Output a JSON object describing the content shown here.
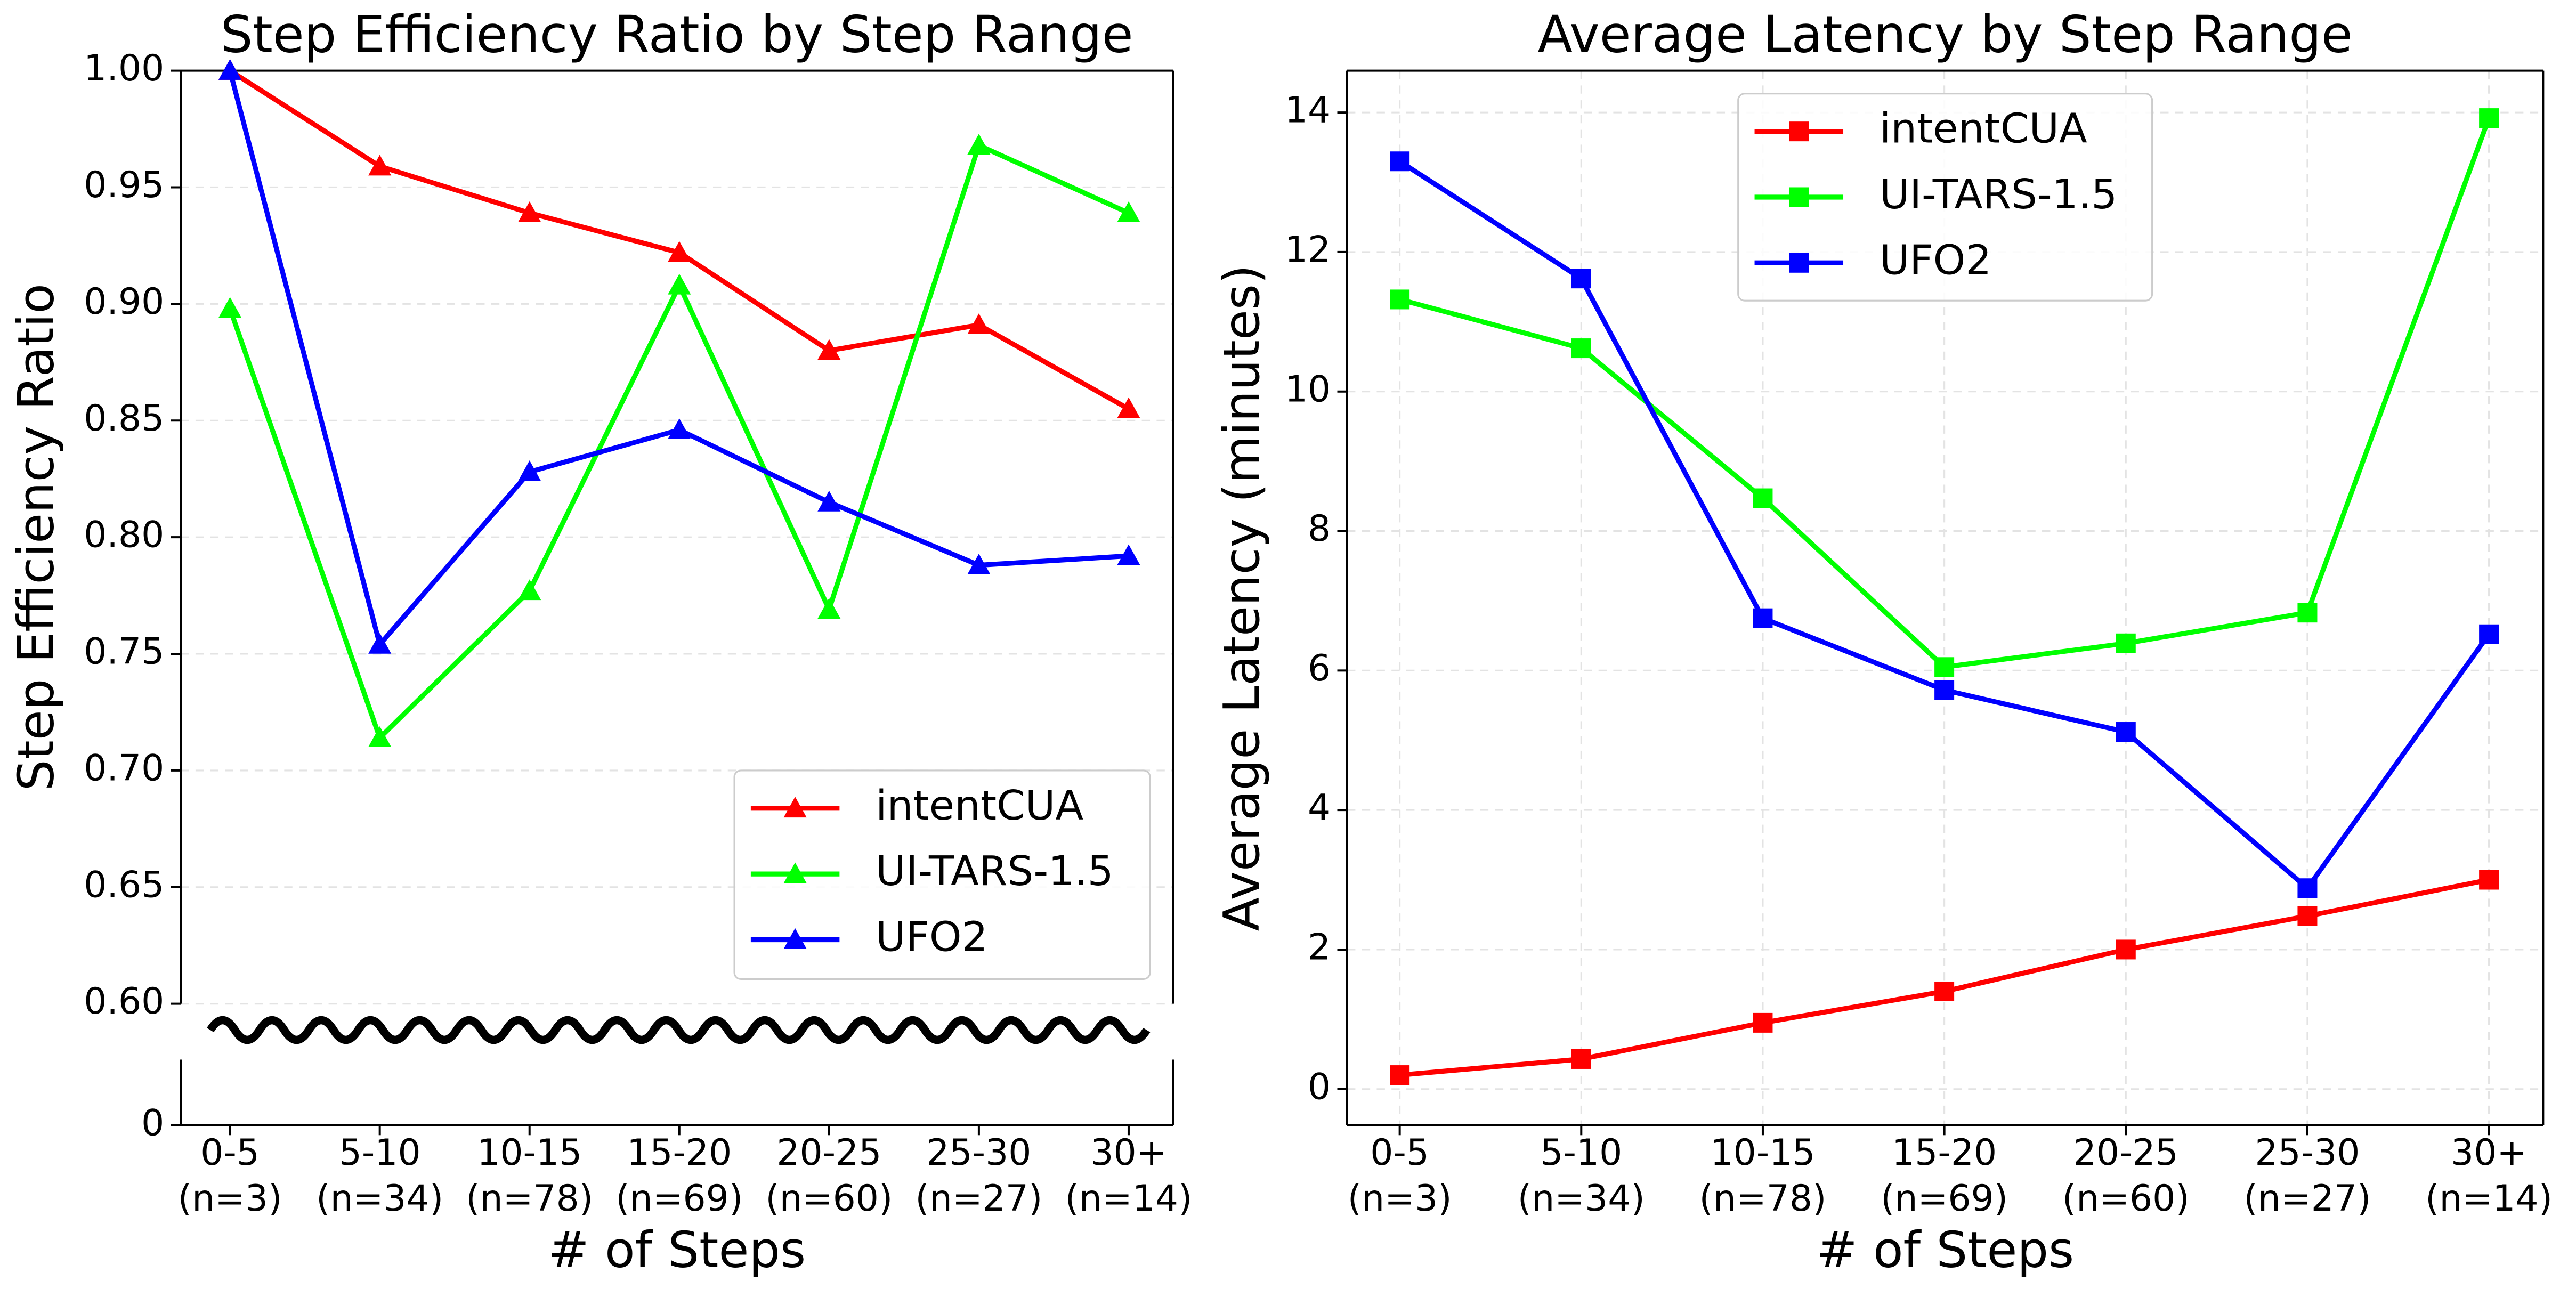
{
  "chart_data": [
    {
      "type": "line",
      "title": "Step Efficiency Ratio by Step Range",
      "xlabel": "# of Steps",
      "ylabel": "Step Efficiency Ratio",
      "categories": [
        "0-5",
        "5-10",
        "10-15",
        "15-20",
        "20-25",
        "25-30",
        "30+"
      ],
      "category_counts": [
        "(n=3)",
        "(n=34)",
        "(n=78)",
        "(n=69)",
        "(n=60)",
        "(n=27)",
        "(n=14)"
      ],
      "marker": "triangle",
      "grid": "y",
      "broken_axis": true,
      "legend": "lower right",
      "ylim": [
        0.6,
        1.0
      ],
      "yticks": [
        0,
        {
          "value": 0.6,
          "label": "0.60"
        },
        {
          "value": 0.65,
          "label": "0.65"
        },
        {
          "value": 0.7,
          "label": "0.70"
        },
        {
          "value": 0.75,
          "label": "0.75"
        },
        {
          "value": 0.8,
          "label": "0.80"
        },
        {
          "value": 0.85,
          "label": "0.85"
        },
        {
          "value": 0.9,
          "label": "0.90"
        },
        {
          "value": 0.95,
          "label": "0.95"
        },
        {
          "value": 1.0,
          "label": "1.00"
        }
      ],
      "series": [
        {
          "name": "intentCUA",
          "color": "#ff0000",
          "values": [
            1.0,
            0.959,
            0.939,
            0.922,
            0.88,
            0.891,
            0.855
          ]
        },
        {
          "name": "UI-TARS-1.5",
          "color": "#00ff00",
          "values": [
            0.898,
            0.714,
            0.777,
            0.908,
            0.769,
            0.968,
            0.939
          ]
        },
        {
          "name": "UFO2",
          "color": "#0000ff",
          "values": [
            1.0,
            0.754,
            0.828,
            0.846,
            0.815,
            0.788,
            0.792
          ]
        }
      ]
    },
    {
      "type": "line",
      "title": "Average Latency by Step Range",
      "xlabel": "# of Steps",
      "ylabel": "Average Latency (minutes)",
      "categories": [
        "0-5",
        "5-10",
        "10-15",
        "15-20",
        "20-25",
        "25-30",
        "30+"
      ],
      "category_counts": [
        "(n=3)",
        "(n=34)",
        "(n=78)",
        "(n=69)",
        "(n=60)",
        "(n=27)",
        "(n=14)"
      ],
      "marker": "square",
      "grid": "both",
      "broken_axis": false,
      "legend": "upper center",
      "ylim": [
        -0.52,
        14.6
      ],
      "yticks": [
        0,
        2,
        4,
        6,
        8,
        10,
        12,
        14
      ],
      "series": [
        {
          "name": "intentCUA",
          "color": "#ff0000",
          "values": [
            0.2,
            0.43,
            0.95,
            1.4,
            2.0,
            2.48,
            3.0
          ]
        },
        {
          "name": "UI-TARS-1.5",
          "color": "#00ff00",
          "values": [
            11.32,
            10.62,
            8.47,
            6.05,
            6.39,
            6.83,
            13.92
          ]
        },
        {
          "name": "UFO2",
          "color": "#0000ff",
          "values": [
            13.3,
            11.62,
            6.75,
            5.72,
            5.12,
            2.88,
            6.52
          ]
        }
      ]
    }
  ]
}
